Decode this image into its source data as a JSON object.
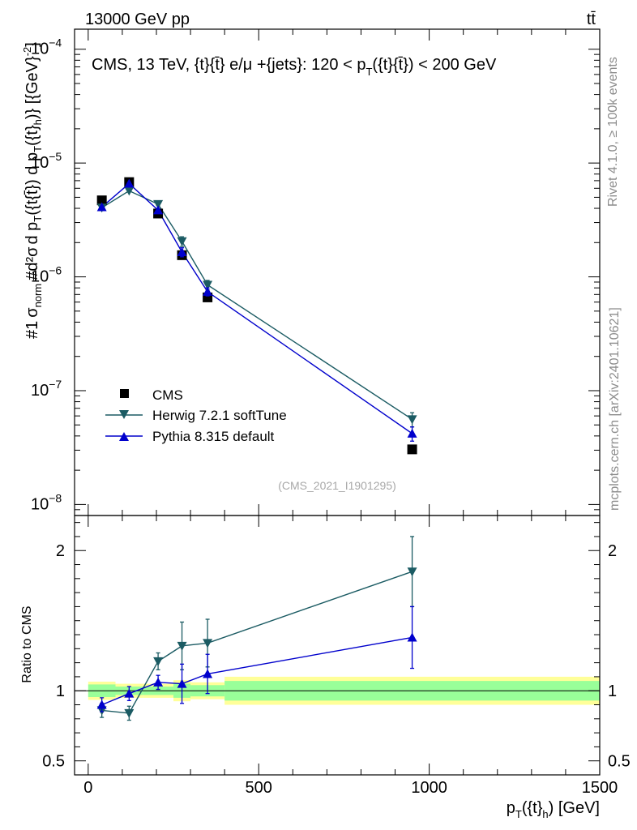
{
  "header": {
    "left": "13000 GeV pp",
    "right": "tt̄"
  },
  "side": {
    "rivet": "Rivet 4.1.0, ≥ 100k events",
    "mcplots": "mcplots.cern.ch [arXiv:2401.10621]"
  },
  "chart_data": [
    {
      "type": "scatter",
      "panel": "main",
      "title": "CMS, 13 TeV, {t}{t̄} e/μ +{jets}: 120 <  p",
      "title_sub": "T",
      "title_tail": "({t}{t̄}) < 200 GeV",
      "ylabel_parts": [
        "#",
        "1",
        "σ",
        "norm",
        "#",
        "d²σ",
        "d p",
        "T",
        "({t",
        "{t̄}) d p",
        "T",
        "({t}",
        "h",
        ")} [{GeV}",
        "-2",
        "]"
      ],
      "yscale": "log",
      "ylim": [
        8e-09,
        0.00015
      ],
      "y_ticks": [
        {
          "value": 1e-08,
          "base": "10",
          "exp": "−8"
        },
        {
          "value": 1e-07,
          "base": "10",
          "exp": "−7"
        },
        {
          "value": 1e-06,
          "base": "10",
          "exp": "−6"
        },
        {
          "value": 1e-05,
          "base": "10",
          "exp": "−5"
        },
        {
          "value": 0.0001,
          "base": "10",
          "exp": "−4"
        }
      ],
      "x": [
        40,
        120,
        205,
        275,
        350,
        950
      ],
      "series": [
        {
          "name": "CMS",
          "color": "#000000",
          "marker": "square",
          "line": false,
          "values": [
            4.7e-06,
            6.8e-06,
            3.6e-06,
            1.55e-06,
            6.6e-07,
            3.05e-08
          ]
        },
        {
          "name": "Herwig 7.2.1 softTune",
          "color": "#1b5b63",
          "marker": "triangle-down",
          "line": true,
          "values": [
            4.05e-06,
            5.7e-06,
            4.35e-06,
            2.05e-06,
            8.5e-07,
            5.6e-08
          ],
          "err": [
            8e-08,
            1e-07,
            1e-07,
            2e-07,
            8e-08,
            8e-09
          ]
        },
        {
          "name": "Pythia 8.315 default",
          "color": "#0000cc",
          "marker": "triangle-up",
          "line": true,
          "values": [
            4.1e-06,
            6.6e-06,
            3.85e-06,
            1.65e-06,
            7.4e-07,
            4.2e-08
          ],
          "err": [
            8e-08,
            1e-07,
            8e-08,
            1.5e-07,
            6e-08,
            6e-09
          ]
        }
      ],
      "watermark": "(CMS_2021_I1901295)",
      "legend_position": "lower-left"
    },
    {
      "type": "scatter",
      "panel": "ratio",
      "ylabel": "Ratio to CMS",
      "ylim": [
        0.4,
        2.25
      ],
      "xlim": [
        -40,
        1500
      ],
      "x_ticks": [
        0,
        500,
        1000,
        1500
      ],
      "y_ticks": [
        0.5,
        1,
        2
      ],
      "xlabel_parts": [
        "p",
        "T",
        "({t}",
        "h",
        ") [GeV]"
      ],
      "bands": [
        {
          "x0": 0,
          "x1": 80,
          "inner": 0.045,
          "outer": 0.065
        },
        {
          "x0": 80,
          "x1": 160,
          "inner": 0.03,
          "outer": 0.05
        },
        {
          "x0": 160,
          "x1": 250,
          "inner": 0.03,
          "outer": 0.05
        },
        {
          "x0": 250,
          "x1": 300,
          "inner": 0.05,
          "outer": 0.075
        },
        {
          "x0": 300,
          "x1": 400,
          "inner": 0.04,
          "outer": 0.06
        },
        {
          "x0": 400,
          "x1": 1500,
          "inner": 0.07,
          "outer": 0.1
        }
      ],
      "x": [
        40,
        120,
        205,
        275,
        350,
        950
      ],
      "series": [
        {
          "name": "Herwig 7.2.1 softTune",
          "color": "#1b5b63",
          "marker": "triangle-down",
          "values": [
            0.86,
            0.84,
            1.21,
            1.32,
            1.34,
            1.85
          ],
          "err": [
            0.05,
            0.05,
            0.06,
            0.17,
            0.17,
            0.25
          ]
        },
        {
          "name": "Pythia 8.315 default",
          "color": "#0000cc",
          "marker": "triangle-up",
          "values": [
            0.9,
            0.98,
            1.06,
            1.05,
            1.12,
            1.38
          ],
          "err": [
            0.05,
            0.05,
            0.05,
            0.14,
            0.14,
            0.22
          ]
        }
      ]
    }
  ]
}
